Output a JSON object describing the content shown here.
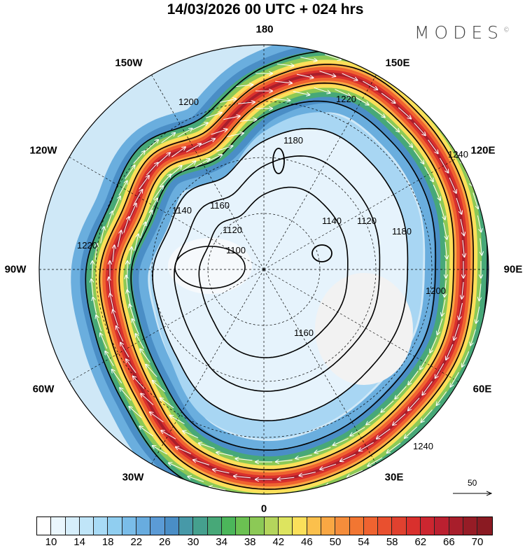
{
  "title": "14/03/2026  00 UTC  + 024 hrs",
  "brand": "MODES",
  "brand_mark": "©",
  "longitude_labels": {
    "top": "180",
    "e150": "150E",
    "e120": "120E",
    "e90": "90E",
    "e60": "60E",
    "e30": "30E",
    "bottom": "0",
    "w30": "30W",
    "w60": "60W",
    "w90": "90W",
    "w120": "120W",
    "w150": "150W"
  },
  "contour_labels": [
    "1100",
    "1120",
    "1140",
    "1160",
    "1180",
    "1200",
    "1220",
    "1240"
  ],
  "vector_reference": "50",
  "colorbar": {
    "labels": [
      "10",
      "14",
      "18",
      "22",
      "26",
      "30",
      "34",
      "38",
      "42",
      "46",
      "50",
      "54",
      "58",
      "62",
      "66",
      "70"
    ],
    "colors": [
      "#ffffff",
      "#eaf6fd",
      "#d6eefb",
      "#c0e5f8",
      "#a8dbf6",
      "#90cef0",
      "#7abde9",
      "#68acdf",
      "#5b9bd6",
      "#4a8ec6",
      "#4799a8",
      "#45a08e",
      "#47a878",
      "#4bb65a",
      "#6bc152",
      "#8cc956",
      "#b4d55c",
      "#dde45f",
      "#fbe05a",
      "#fbc04c",
      "#f9a743",
      "#f58d3b",
      "#f27632",
      "#ef6330",
      "#e9502f",
      "#e0412f",
      "#d9302d",
      "#cc2630",
      "#bb2030",
      "#a81e2b",
      "#961c26",
      "#8a1a22"
    ]
  }
}
